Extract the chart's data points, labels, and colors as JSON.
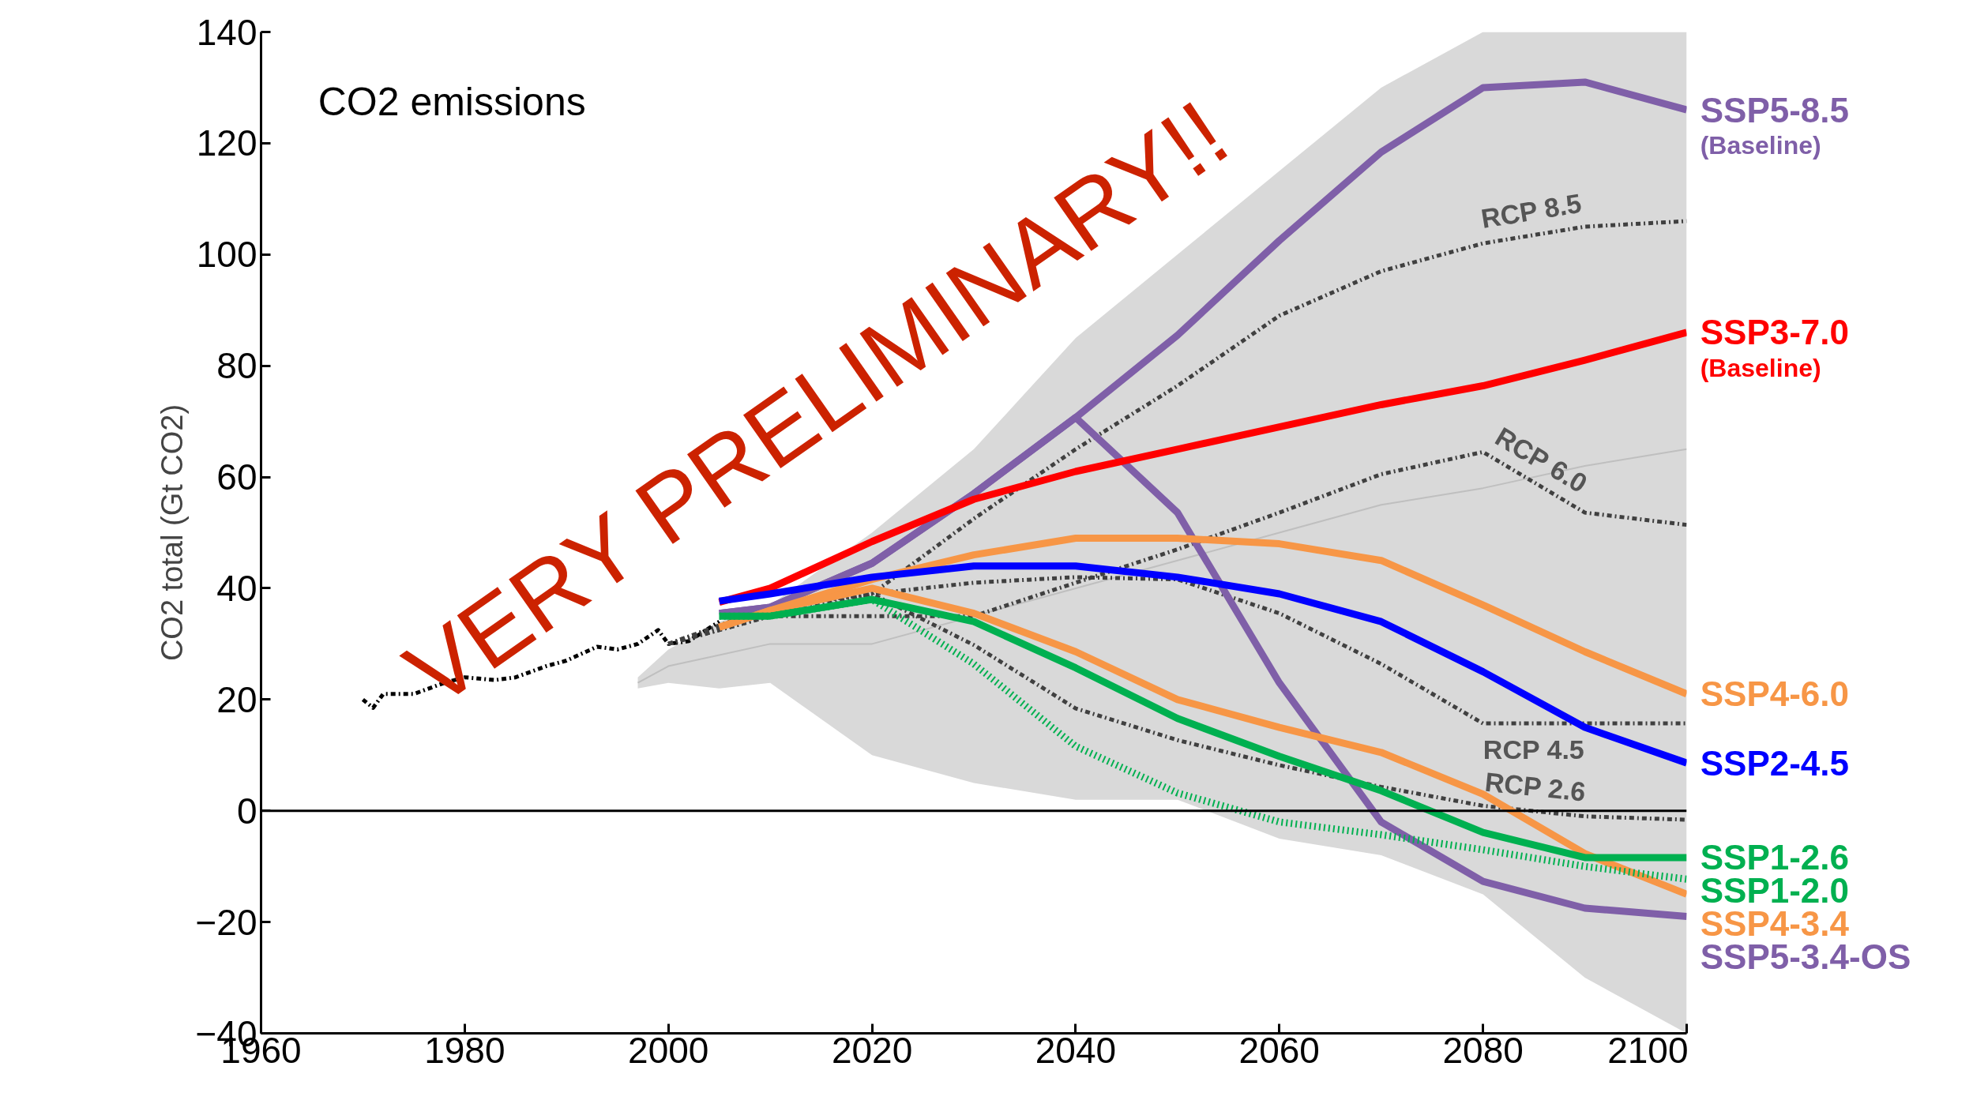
{
  "chart_data": {
    "type": "line",
    "title": "CO2 emissions",
    "ylabel": "CO2 total (Gt CO2)",
    "xlim": [
      1960,
      2100
    ],
    "ylim": [
      -40,
      140
    ],
    "xticks": [
      1960,
      1980,
      2000,
      2020,
      2040,
      2060,
      2080,
      2100
    ],
    "yticks": [
      -40,
      -20,
      0,
      20,
      40,
      60,
      80,
      100,
      120,
      140
    ],
    "grid": false,
    "annotations": [
      "VERY PRELIMINARY!!"
    ],
    "ref_lines": [
      {
        "axis": "y",
        "value": 0,
        "color": "#000000"
      }
    ],
    "series": [
      {
        "type": "line",
        "color": "#bfbfbf",
        "x": [
          1997,
          2000,
          2005,
          2010,
          2020,
          2030,
          2040,
          2050,
          2060,
          2070,
          2080,
          2090,
          2100
        ],
        "values": [
          23,
          26,
          28,
          30,
          30,
          35,
          40,
          45,
          50,
          55,
          58,
          62,
          65
        ],
        "upper": [
          24,
          29,
          34,
          37,
          50,
          65,
          85,
          100,
          115,
          130,
          140,
          140,
          140
        ],
        "lower": [
          22,
          23,
          22,
          23,
          10,
          5,
          2,
          2,
          -5,
          -8,
          -15,
          -30,
          -40
        ]
      },
      {
        "type": "line",
        "color": "#000000",
        "line_style": "dashdot",
        "x": [
          1970,
          1971,
          1972,
          1975,
          1978,
          1980,
          1983,
          1985,
          1988,
          1990,
          1993,
          1995,
          1997,
          1999,
          2000,
          2002,
          2005
        ],
        "values": [
          20,
          18.5,
          21,
          21,
          23,
          24,
          23.5,
          24,
          26,
          27,
          29.5,
          29,
          30,
          32.5,
          30,
          30.5,
          34
        ]
      },
      {
        "name": "RCP 8.5",
        "color": "#404040",
        "line_style": "dashdot",
        "x": [
          2000,
          2010,
          2020,
          2030,
          2040,
          2050,
          2060,
          2070,
          2080,
          2090,
          2100
        ],
        "values": [
          30,
          35,
          39,
          52.5,
          65,
          76.4,
          89,
          97,
          102,
          105,
          106
        ]
      },
      {
        "name": "RCP 6.0",
        "color": "#404040",
        "line_style": "dashdot",
        "x": [
          2000,
          2010,
          2020,
          2030,
          2040,
          2050,
          2060,
          2070,
          2080,
          2090,
          2100
        ],
        "values": [
          30,
          35,
          35,
          35,
          41,
          47,
          53.6,
          60.5,
          64.5,
          53.6,
          51.4
        ]
      },
      {
        "name": "RCP 4.5",
        "color": "#404040",
        "line_style": "dashdot",
        "x": [
          2000,
          2010,
          2020,
          2030,
          2040,
          2050,
          2060,
          2070,
          2080,
          2090,
          2100
        ],
        "values": [
          30,
          36.6,
          39,
          41,
          42,
          41.6,
          35.5,
          26.4,
          15.7,
          15.7,
          15.7
        ]
      },
      {
        "name": "RCP 2.6",
        "color": "#404040",
        "line_style": "dashdot",
        "x": [
          2000,
          2010,
          2020,
          2030,
          2040,
          2050,
          2060,
          2070,
          2080,
          2090,
          2100
        ],
        "values": [
          30,
          36.6,
          39,
          29.8,
          18.4,
          12.7,
          8.2,
          4.3,
          0.9,
          -1,
          -1.6
        ]
      },
      {
        "name": "SSP5-8.5\n(Baseline)",
        "color": "#7f5fa8",
        "line_style": "solid",
        "x": [
          2005,
          2010,
          2020,
          2030,
          2040,
          2050,
          2060,
          2070,
          2080,
          2090,
          2100
        ],
        "values": [
          35.5,
          36.6,
          44.5,
          57,
          70.7,
          85.5,
          102.5,
          118.4,
          130,
          131,
          126
        ]
      },
      {
        "name": "SSP5-3.4-OS",
        "color": "#7f5fa8",
        "line_style": "solid",
        "x": [
          2005,
          2010,
          2020,
          2030,
          2040,
          2050,
          2060,
          2070,
          2080,
          2090,
          2100
        ],
        "values": [
          35.5,
          36.6,
          44.5,
          57,
          70.7,
          53.6,
          23,
          -2,
          -12.7,
          -17.5,
          -19
        ]
      },
      {
        "name": "SSP3-7.0\n(Baseline)",
        "color": "#ff0000",
        "line_style": "solid",
        "x": [
          2005,
          2010,
          2020,
          2030,
          2040,
          2050,
          2060,
          2070,
          2080,
          2090,
          2100
        ],
        "values": [
          37.5,
          40,
          48.4,
          56,
          61,
          65,
          69,
          73,
          76.4,
          81,
          86
        ]
      },
      {
        "name": "SSP4-6.0",
        "color": "#f79646",
        "line_style": "solid",
        "x": [
          2005,
          2010,
          2020,
          2030,
          2040,
          2050,
          2060,
          2070,
          2080,
          2090,
          2100
        ],
        "values": [
          33,
          36,
          41.6,
          46,
          49,
          49,
          48,
          45,
          37,
          28.6,
          21
        ]
      },
      {
        "name": "SSP4-3.4",
        "color": "#f79646",
        "line_style": "solid",
        "x": [
          2005,
          2010,
          2020,
          2030,
          2040,
          2050,
          2060,
          2070,
          2080,
          2090,
          2100
        ],
        "values": [
          33,
          36,
          40,
          35.5,
          28.6,
          20,
          15,
          10.5,
          3,
          -7.7,
          -15
        ]
      },
      {
        "name": "SSP2-4.5",
        "color": "#0000ff",
        "line_style": "solid",
        "x": [
          2005,
          2010,
          2020,
          2030,
          2040,
          2050,
          2060,
          2070,
          2080,
          2090,
          2100
        ],
        "values": [
          37.7,
          39,
          42,
          44,
          44,
          42,
          39,
          34,
          25,
          15,
          8.6
        ]
      },
      {
        "name": "SSP1-2.6",
        "color": "#00b050",
        "line_style": "solid",
        "x": [
          2005,
          2010,
          2020,
          2030,
          2040,
          2050,
          2060,
          2070,
          2080,
          2090,
          2100
        ],
        "values": [
          35,
          35,
          38,
          34,
          25.7,
          16.6,
          9.8,
          3.6,
          -3.9,
          -8.4,
          -8.4
        ]
      },
      {
        "name": "SSP1-2.0",
        "color": "#00b050",
        "line_style": "dotted",
        "x": [
          2005,
          2010,
          2020,
          2030,
          2040,
          2050,
          2060,
          2070,
          2080,
          2090,
          2100
        ],
        "values": [
          35,
          35,
          38,
          26.4,
          11.6,
          3.2,
          -2,
          -4.3,
          -7,
          -10,
          -12.3
        ]
      }
    ]
  }
}
